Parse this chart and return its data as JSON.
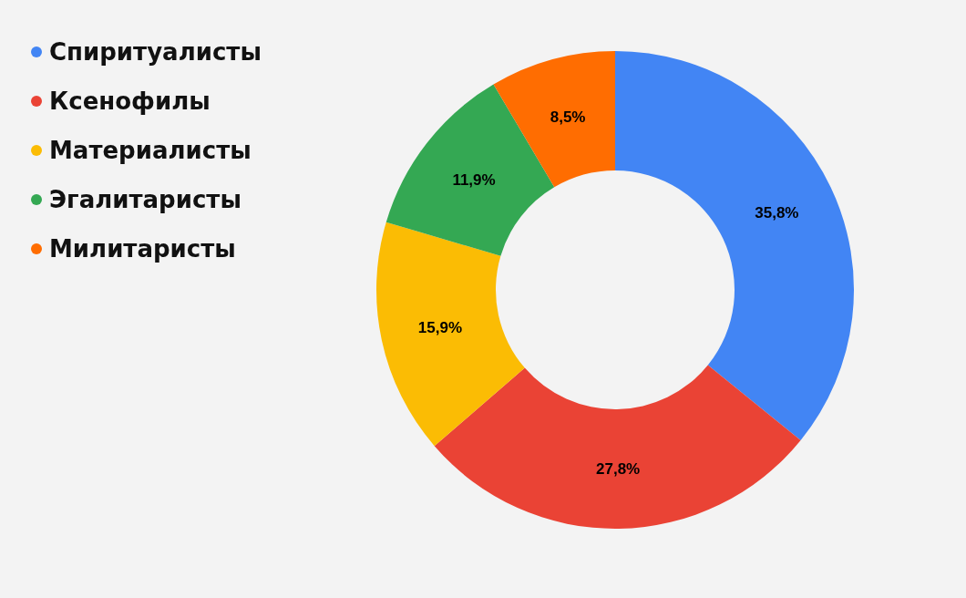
{
  "chart_data": {
    "type": "donut",
    "categories": [
      "Спиритуалисты",
      "Ксенофилы",
      "Материалисты",
      "Эгалитаристы",
      "Милитаристы"
    ],
    "values": [
      35.8,
      27.8,
      15.9,
      11.9,
      8.5
    ],
    "colors": [
      "#4285f4",
      "#ea4335",
      "#fbbc04",
      "#34a853",
      "#ff6d01"
    ],
    "value_labels": [
      "35,8%",
      "27,8%",
      "15,9%",
      "11,9%",
      "8,5%"
    ],
    "legend": "top left"
  }
}
